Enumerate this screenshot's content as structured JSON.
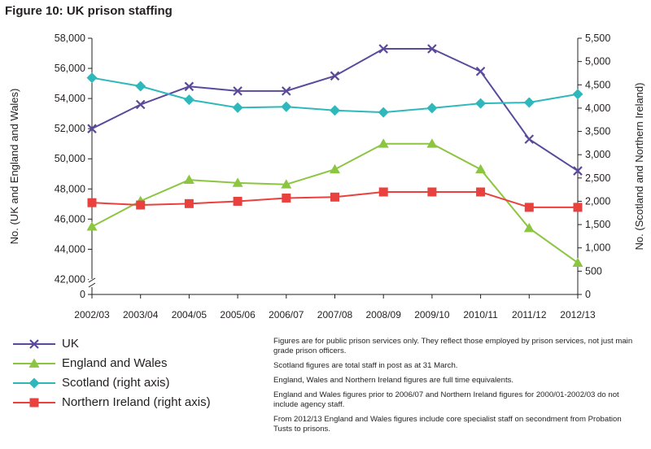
{
  "figure_title": "Figure 10: UK prison staffing",
  "notes": [
    "Figures are for public prison services only. They reflect those employed by prison services, not just main grade prison officers.",
    "Scotland figures are total staff in post as at 31 March.",
    "England, Wales and Northern Ireland figures are full time equivalents.",
    "England and Wales figures prior to 2006/07 and Northern Ireland figures for 2000/01-2002/03 do not include agency staff.",
    "From 2012/13 England and Wales figures include core specialist staff on secondment from Probation Tusts to prisons."
  ],
  "chart_data": {
    "type": "line",
    "title": "Figure 10: UK prison staffing",
    "ylabel": "No. (UK and England and Wales)",
    "y2label": "No. (Scotland and Northern Ireland)",
    "categories": [
      "2002/03",
      "2003/04",
      "2004/05",
      "2005/06",
      "2006/07",
      "2007/08",
      "2008/09",
      "2009/10",
      "2010/11",
      "2011/12",
      "2012/13"
    ],
    "left_ticks": [
      {
        "value": 58000,
        "label": "58,000"
      },
      {
        "value": 56000,
        "label": "56,000"
      },
      {
        "value": 54000,
        "label": "54,000"
      },
      {
        "value": 52000,
        "label": "52,000"
      },
      {
        "value": 50000,
        "label": "50,000"
      },
      {
        "value": 48000,
        "label": "48,000"
      },
      {
        "value": 46000,
        "label": "46,000"
      },
      {
        "value": 44000,
        "label": "44,000"
      },
      {
        "value": 42000,
        "label": "42,000"
      }
    ],
    "left_zero_label": "0",
    "left_axis_break": true,
    "right_ticks": [
      {
        "value": 5500,
        "label": "5,500"
      },
      {
        "value": 5000,
        "label": "5,000"
      },
      {
        "value": 4500,
        "label": "4,500"
      },
      {
        "value": 4000,
        "label": "4,000"
      },
      {
        "value": 3500,
        "label": "3,500"
      },
      {
        "value": 3000,
        "label": "3,000"
      },
      {
        "value": 2500,
        "label": "2,500"
      },
      {
        "value": 2000,
        "label": "2,000"
      },
      {
        "value": 1500,
        "label": "1,500"
      },
      {
        "value": 1000,
        "label": "1,000"
      },
      {
        "value": 500,
        "label": "500"
      },
      {
        "value": 0,
        "label": "0"
      }
    ],
    "left_ylim": [
      41000,
      58000
    ],
    "right_ylim": [
      0,
      5500
    ],
    "grid": false,
    "legend_position": "bottom-left",
    "series": [
      {
        "name": "UK",
        "axis": "left",
        "color": "#5b4a9c",
        "marker": "x",
        "values": [
          52000,
          53600,
          54800,
          54500,
          54500,
          55500,
          57300,
          57300,
          55800,
          51300,
          49200
        ]
      },
      {
        "name": "England and Wales",
        "axis": "left",
        "color": "#8cc641",
        "marker": "triangle",
        "values": [
          45500,
          47200,
          48600,
          48400,
          48300,
          49300,
          51000,
          51000,
          49300,
          45400,
          43100
        ]
      },
      {
        "name": "Scotland (right axis)",
        "axis": "right",
        "color": "#2fb8bb",
        "marker": "diamond",
        "values": [
          4650,
          4470,
          4180,
          4010,
          4030,
          3950,
          3910,
          4000,
          4100,
          4120,
          4300
        ]
      },
      {
        "name": "Northern Ireland (right axis)",
        "axis": "right",
        "color": "#e8413e",
        "marker": "square",
        "values": [
          1970,
          1920,
          1950,
          2000,
          2070,
          2090,
          2200,
          2200,
          2200,
          1870,
          1870
        ]
      }
    ]
  }
}
